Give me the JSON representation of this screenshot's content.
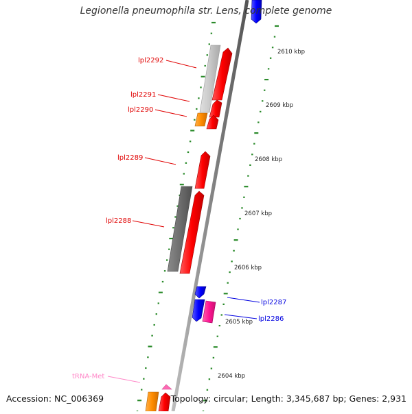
{
  "title": "Legionella pneumophila str. Lens, complete genome",
  "footer": {
    "accession": "Accession: NC_006369",
    "summary": "Topology: circular; Length: 3,345,687 bp; Genes: 2,931"
  },
  "kbp_labels": [
    "2610 kbp",
    "2609 kbp",
    "2608 kbp",
    "2607 kbp",
    "2606 kbp",
    "2605 kbp",
    "2604 kbp"
  ],
  "gene_labels": {
    "lpl2292": "lpl2292",
    "lpl2291": "lpl2291",
    "lpl2290": "lpl2290",
    "lpl2289": "lpl2289",
    "lpl2288": "lpl2288",
    "lpl2287": "lpl2287",
    "lpl2286": "lpl2286",
    "trna_met": "tRNA-Met"
  },
  "colors": {
    "gene_cds": "#ff0000",
    "gene_other_strand": "#0000ff",
    "gray_light": "#c8c8c8",
    "gray_dark": "#6e6e6e",
    "orange": "#ff8c00",
    "pink": "#ff1493",
    "trna": "#ff69b4",
    "tick_green": "#2a8a2a"
  }
}
